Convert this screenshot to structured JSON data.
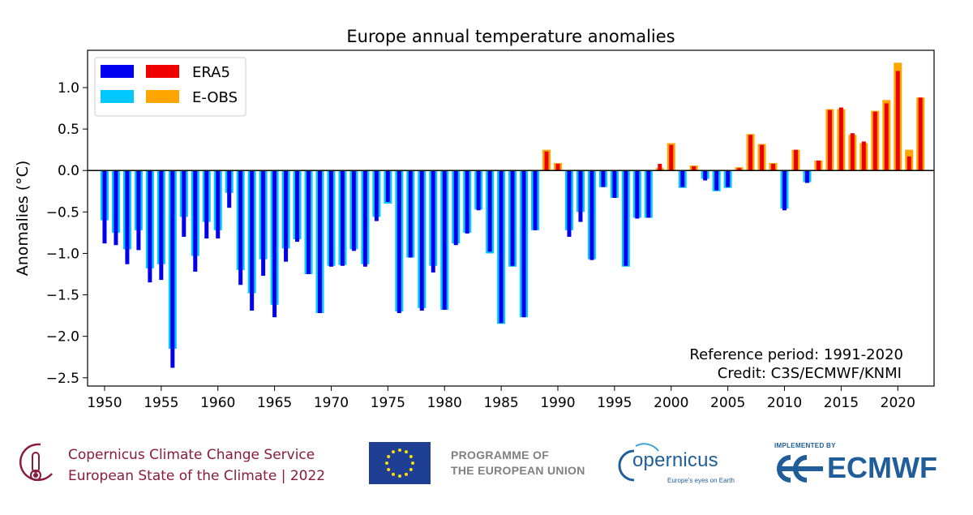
{
  "chart_data": {
    "type": "bar",
    "title": "Europe annual temperature anomalies",
    "xlabel": "",
    "ylabel": "Anomalies (°C)",
    "xlim": [
      1948.5,
      2023.2
    ],
    "ylim": [
      -2.6,
      1.45
    ],
    "xticks": [
      "1950",
      "1955",
      "1960",
      "1965",
      "1970",
      "1975",
      "1980",
      "1985",
      "1990",
      "1995",
      "2000",
      "2005",
      "2010",
      "2015",
      "2020"
    ],
    "yticks": [
      "−2.5",
      "−2.0",
      "−1.5",
      "−1.0",
      "−0.5",
      "0.0",
      "0.5",
      "1.0"
    ],
    "ytick_values": [
      -2.5,
      -2.0,
      -1.5,
      -1.0,
      -0.5,
      0.0,
      0.5,
      1.0
    ],
    "legend": {
      "position": "top-left",
      "labels": [
        "ERA5",
        "E-OBS"
      ]
    },
    "colors": {
      "era5_neg": "#0000ee",
      "era5_pos": "#ee0000",
      "eobs_neg": "#00c8ff",
      "eobs_pos": "#ffa500"
    },
    "years": [
      1950,
      1951,
      1952,
      1953,
      1954,
      1955,
      1956,
      1957,
      1958,
      1959,
      1960,
      1961,
      1962,
      1963,
      1964,
      1965,
      1966,
      1967,
      1968,
      1969,
      1970,
      1971,
      1972,
      1973,
      1974,
      1975,
      1976,
      1977,
      1978,
      1979,
      1980,
      1981,
      1982,
      1983,
      1984,
      1985,
      1986,
      1987,
      1988,
      1989,
      1990,
      1991,
      1992,
      1993,
      1994,
      1995,
      1996,
      1997,
      1998,
      1999,
      2000,
      2001,
      2002,
      2003,
      2004,
      2005,
      2006,
      2007,
      2008,
      2009,
      2010,
      2011,
      2012,
      2013,
      2014,
      2015,
      2016,
      2017,
      2018,
      2019,
      2020,
      2021,
      2022
    ],
    "series": [
      {
        "name": "ERA5",
        "values": [
          -0.88,
          -0.9,
          -1.13,
          -0.96,
          -1.35,
          -1.32,
          -2.38,
          -0.8,
          -1.22,
          -0.82,
          -0.82,
          -0.45,
          -1.38,
          -1.69,
          -1.27,
          -1.77,
          -1.1,
          -0.86,
          -1.25,
          -1.72,
          -1.16,
          -1.15,
          -0.97,
          -1.16,
          -0.61,
          -0.38,
          -1.72,
          -1.05,
          -1.69,
          -1.23,
          -1.68,
          -0.9,
          -0.76,
          -0.48,
          -0.98,
          -1.84,
          -1.15,
          -1.77,
          -0.72,
          0.23,
          0.08,
          -0.8,
          -0.62,
          -1.08,
          -0.2,
          -0.33,
          -1.15,
          -0.58,
          -0.57,
          0.08,
          0.31,
          -0.2,
          0.05,
          -0.12,
          -0.24,
          -0.2,
          0.03,
          0.43,
          0.31,
          0.08,
          -0.48,
          0.25,
          -0.15,
          0.12,
          0.73,
          0.76,
          0.45,
          0.35,
          0.71,
          0.81,
          1.2,
          0.17,
          0.88
        ]
      },
      {
        "name": "E-OBS",
        "values": [
          -0.6,
          -0.75,
          -0.95,
          -0.72,
          -1.18,
          -1.13,
          -2.15,
          -0.56,
          -1.03,
          -0.62,
          -0.72,
          -0.27,
          -1.2,
          -1.48,
          -1.07,
          -1.62,
          -0.94,
          -0.83,
          -1.25,
          -1.72,
          -1.15,
          -1.14,
          -0.95,
          -1.13,
          -0.56,
          -0.4,
          -1.7,
          -1.05,
          -1.66,
          -1.15,
          -1.68,
          -0.88,
          -0.75,
          -0.47,
          -1.0,
          -1.85,
          -1.16,
          -1.77,
          -0.72,
          0.25,
          0.09,
          -0.72,
          -0.5,
          -1.07,
          -0.2,
          -0.33,
          -1.16,
          -0.57,
          -0.57,
          0.03,
          0.33,
          -0.21,
          0.06,
          -0.1,
          -0.25,
          -0.21,
          0.04,
          0.44,
          0.32,
          0.09,
          -0.46,
          0.25,
          -0.14,
          0.12,
          0.74,
          0.74,
          0.43,
          0.33,
          0.72,
          0.85,
          1.3,
          0.25,
          0.88
        ]
      }
    ],
    "annotations": [
      "Reference period: 1991-2020",
      "Credit: C3S/ECMWF/KNMI"
    ]
  },
  "footer": {
    "c3s_line1": "Copernicus Climate Change Service",
    "c3s_line2": "European State of the Climate | 2022",
    "eu_line1": "PROGRAMME OF",
    "eu_line2": "THE EUROPEAN UNION",
    "copernicus": "opernicus",
    "copernicus_tagline": "Europe's eyes on Earth",
    "ecmwf_implemented": "IMPLEMENTED BY",
    "ecmwf": "ECMWF"
  }
}
